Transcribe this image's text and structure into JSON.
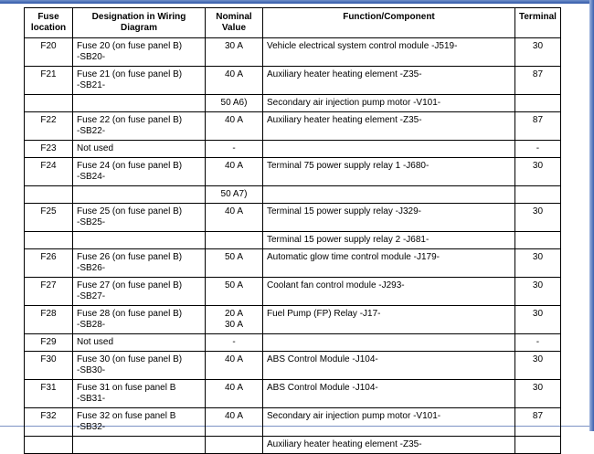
{
  "table": {
    "header": [
      "Fuse\nlocation",
      "Designation in Wiring\nDiagram",
      "Nominal\nValue",
      "Function/Component",
      "Terminal"
    ],
    "rows": [
      [
        "F20",
        "Fuse 20 (on fuse panel B)\n-SB20-",
        "30 A",
        "Vehicle electrical system control module -J519-",
        "30"
      ],
      [
        "F21",
        "Fuse 21 (on fuse panel B)\n-SB21-",
        "40 A",
        "Auxiliary heater heating element -Z35-",
        "87"
      ],
      [
        null,
        null,
        "50 A6)",
        "Secondary air injection pump motor -V101-",
        null
      ],
      [
        "F22",
        "Fuse 22 (on fuse panel B)\n-SB22-",
        "40 A",
        "Auxiliary heater heating element -Z35-",
        "87"
      ],
      [
        "F23",
        "Not used",
        "-",
        null,
        "-"
      ],
      [
        "F24",
        "Fuse 24 (on fuse panel B)\n-SB24-",
        "40 A",
        "Terminal 75 power supply relay 1 -J680-",
        "30"
      ],
      [
        null,
        null,
        "50 A7)",
        null,
        null
      ],
      [
        "F25",
        "Fuse 25 (on fuse panel B)\n-SB25-",
        "40 A",
        "Terminal 15 power supply relay -J329-",
        "30"
      ],
      [
        null,
        null,
        null,
        "Terminal 15 power supply relay 2 -J681-",
        null
      ],
      [
        "F26",
        "Fuse 26 (on fuse panel B)\n-SB26-",
        "50 A",
        "Automatic glow time control module -J179-",
        "30"
      ],
      [
        "F27",
        "Fuse 27 (on fuse panel B)\n-SB27-",
        "50 A",
        "Coolant fan control module -J293-",
        "30"
      ],
      [
        "F28",
        "Fuse 28 (on fuse panel B)\n-SB28-",
        "20 A\n30 A",
        "Fuel Pump (FP) Relay -J17-",
        "30"
      ],
      [
        "F29",
        "Not used",
        "-",
        null,
        "-"
      ],
      [
        "F30",
        "Fuse 30 (on fuse panel B)\n-SB30-",
        "40 A",
        "ABS Control Module -J104-",
        "30"
      ],
      [
        "F31",
        "Fuse 31 on fuse panel B\n-SB31-",
        "40 A",
        "ABS Control Module -J104-",
        "30"
      ],
      [
        "F32",
        "Fuse 32 on fuse panel B\n-SB32-",
        "40 A",
        "Secondary air injection pump motor -V101-",
        "87"
      ],
      [
        null,
        null,
        null,
        "Auxiliary heater heating element -Z35-",
        null
      ]
    ]
  }
}
